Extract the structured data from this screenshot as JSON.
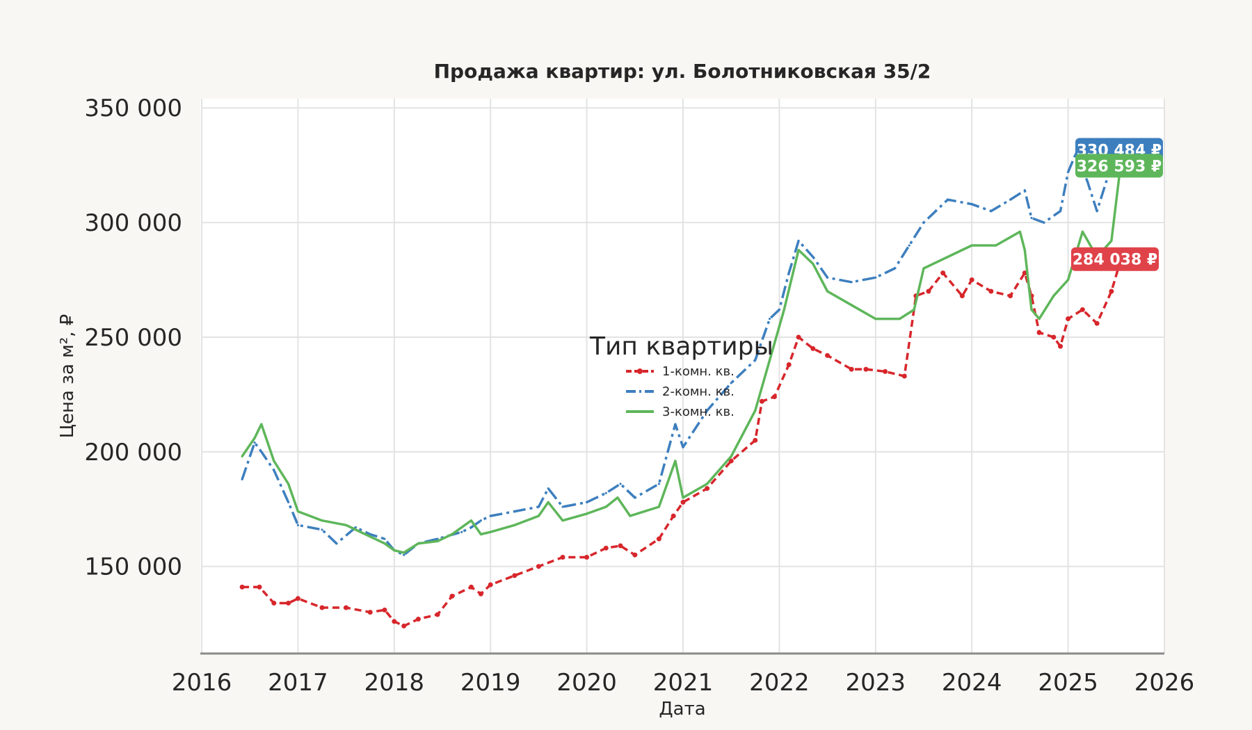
{
  "chart_data": {
    "type": "line",
    "title": "Продажа квартир: ул. Болотниковская 35/2",
    "xlabel": "Дата",
    "ylabel": "Цена за м², ₽",
    "xlim": [
      2016,
      2026
    ],
    "ylim": [
      112000,
      354000
    ],
    "x_ticks": [
      "2016",
      "2017",
      "2018",
      "2019",
      "2020",
      "2021",
      "2022",
      "2023",
      "2024",
      "2025",
      "2026"
    ],
    "y_ticks": [
      150000,
      200000,
      250000,
      300000,
      350000
    ],
    "y_tick_labels": [
      "150 000",
      "200 000",
      "250 000",
      "300 000",
      "350 000"
    ],
    "grid": true,
    "legend": {
      "title": "Тип квартиры",
      "placement": "center",
      "entries": [
        "1-комн. кв.",
        "2-комн. кв.",
        "3-комн. кв."
      ]
    },
    "series": [
      {
        "name": "1-комн. кв.",
        "color": "#d7262b",
        "style": "dashed-with-markers",
        "x": [
          2016.42,
          2016.6,
          2016.75,
          2016.9,
          2017.0,
          2017.25,
          2017.5,
          2017.75,
          2017.9,
          2018.0,
          2018.1,
          2018.25,
          2018.45,
          2018.6,
          2018.8,
          2018.9,
          2019.0,
          2019.25,
          2019.5,
          2019.75,
          2020.0,
          2020.2,
          2020.35,
          2020.5,
          2020.75,
          2020.9,
          2021.0,
          2021.25,
          2021.5,
          2021.75,
          2021.82,
          2021.95,
          2022.1,
          2022.2,
          2022.35,
          2022.5,
          2022.75,
          2022.9,
          2023.1,
          2023.3,
          2023.42,
          2023.55,
          2023.7,
          2023.9,
          2024.0,
          2024.2,
          2024.4,
          2024.55,
          2024.62,
          2024.7,
          2024.85,
          2024.92,
          2025.0,
          2025.15,
          2025.3,
          2025.45,
          2025.55
        ],
        "values": [
          141000,
          141000,
          134000,
          134000,
          136000,
          132000,
          132000,
          130000,
          131000,
          126000,
          124000,
          127000,
          129000,
          137000,
          141000,
          138000,
          142000,
          146000,
          150000,
          154000,
          154000,
          158000,
          159000,
          155000,
          162000,
          172000,
          178000,
          184000,
          196000,
          205000,
          222000,
          224000,
          238000,
          250000,
          245000,
          242000,
          236000,
          236000,
          235000,
          233000,
          268000,
          270000,
          278000,
          268000,
          275000,
          270000,
          268000,
          278000,
          268000,
          252000,
          250000,
          246000,
          258000,
          262000,
          256000,
          270000,
          284038
        ]
      },
      {
        "name": "2-комн. кв.",
        "color": "#3d7fbe",
        "style": "dash-dot",
        "x": [
          2016.42,
          2016.55,
          2016.62,
          2016.75,
          2016.9,
          2017.0,
          2017.25,
          2017.4,
          2017.6,
          2017.75,
          2017.9,
          2018.0,
          2018.1,
          2018.25,
          2018.45,
          2018.7,
          2018.8,
          2018.9,
          2019.0,
          2019.25,
          2019.5,
          2019.6,
          2019.75,
          2020.0,
          2020.2,
          2020.35,
          2020.5,
          2020.75,
          2020.92,
          2021.0,
          2021.25,
          2021.5,
          2021.75,
          2021.9,
          2022.0,
          2022.1,
          2022.2,
          2022.35,
          2022.5,
          2022.75,
          2023.0,
          2023.2,
          2023.35,
          2023.5,
          2023.75,
          2024.0,
          2024.2,
          2024.4,
          2024.55,
          2024.62,
          2024.75,
          2024.92,
          2025.0,
          2025.08,
          2025.2,
          2025.3,
          2025.45,
          2025.55
        ],
        "values": [
          188000,
          204000,
          200000,
          192000,
          178000,
          168000,
          166000,
          160000,
          167000,
          164000,
          162000,
          157000,
          155000,
          160000,
          162000,
          165000,
          167000,
          170000,
          172000,
          174000,
          176000,
          184000,
          176000,
          178000,
          182000,
          186000,
          180000,
          186000,
          212000,
          202000,
          218000,
          230000,
          240000,
          258000,
          262000,
          278000,
          292000,
          285000,
          276000,
          274000,
          276000,
          280000,
          290000,
          300000,
          310000,
          308000,
          305000,
          310000,
          314000,
          302000,
          300000,
          305000,
          322000,
          330000,
          318000,
          305000,
          325000,
          330484
        ]
      },
      {
        "name": "3-комн. кв.",
        "color": "#5eb65a",
        "style": "solid",
        "x": [
          2016.42,
          2016.55,
          2016.62,
          2016.75,
          2016.9,
          2017.0,
          2017.25,
          2017.5,
          2017.75,
          2017.9,
          2018.0,
          2018.1,
          2018.25,
          2018.45,
          2018.6,
          2018.8,
          2018.9,
          2019.0,
          2019.25,
          2019.5,
          2019.6,
          2019.75,
          2020.0,
          2020.2,
          2020.32,
          2020.45,
          2020.75,
          2020.92,
          2021.0,
          2021.25,
          2021.5,
          2021.75,
          2021.9,
          2022.05,
          2022.2,
          2022.35,
          2022.5,
          2022.75,
          2023.0,
          2023.25,
          2023.4,
          2023.5,
          2023.75,
          2024.0,
          2024.25,
          2024.5,
          2024.55,
          2024.62,
          2024.7,
          2024.85,
          2025.0,
          2025.15,
          2025.3,
          2025.45,
          2025.55
        ],
        "values": [
          198000,
          206000,
          212000,
          196000,
          186000,
          174000,
          170000,
          168000,
          163000,
          160000,
          157000,
          156000,
          160000,
          161000,
          164000,
          170000,
          164000,
          165000,
          168000,
          172000,
          178000,
          170000,
          173000,
          176000,
          180000,
          172000,
          176000,
          196000,
          180000,
          186000,
          198000,
          218000,
          240000,
          262000,
          288000,
          282000,
          270000,
          264000,
          258000,
          258000,
          262000,
          280000,
          285000,
          290000,
          290000,
          296000,
          288000,
          262000,
          258000,
          268000,
          275000,
          296000,
          285000,
          292000,
          326593
        ]
      }
    ],
    "end_labels": [
      {
        "series": "2-комн. кв.",
        "text": "330 484 ₽",
        "value": 330484,
        "color": "#3d7fbe"
      },
      {
        "series": "3-комн. кв.",
        "text": "326 593 ₽",
        "value": 326593,
        "color": "#5eb65a"
      },
      {
        "series": "1-комн. кв.",
        "text": "284 038 ₽",
        "value": 284038,
        "color": "#e04249"
      }
    ]
  }
}
